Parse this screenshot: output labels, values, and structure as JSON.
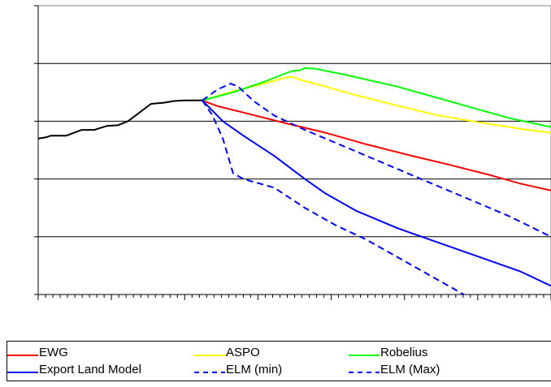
{
  "chart_data": {
    "type": "line",
    "title": "",
    "xlabel": "",
    "ylabel": "",
    "grid": true,
    "legend_position": "bottom",
    "x_range": [
      0,
      100
    ],
    "y_range": [
      0,
      5
    ],
    "series": [
      {
        "name": "",
        "color": "#000000",
        "style": "solid",
        "points": [
          [
            0,
            2.7
          ],
          [
            1.5,
            2.72
          ],
          [
            2.5,
            2.75
          ],
          [
            5.5,
            2.75
          ],
          [
            7,
            2.8
          ],
          [
            8.5,
            2.85
          ],
          [
            11,
            2.85
          ],
          [
            12,
            2.88
          ],
          [
            13.5,
            2.92
          ],
          [
            15.5,
            2.93
          ],
          [
            17.5,
            3.0
          ],
          [
            19,
            3.1
          ],
          [
            22,
            3.3
          ],
          [
            24.5,
            3.32
          ],
          [
            26.5,
            3.35
          ],
          [
            28.5,
            3.36
          ],
          [
            32,
            3.36
          ]
        ]
      },
      {
        "name": "EWG",
        "color": "#ff0000",
        "style": "solid",
        "points": [
          [
            32,
            3.36
          ],
          [
            35,
            3.26
          ],
          [
            40,
            3.15
          ],
          [
            48,
            2.97
          ],
          [
            56,
            2.8
          ],
          [
            64,
            2.6
          ],
          [
            72,
            2.42
          ],
          [
            80,
            2.25
          ],
          [
            88,
            2.07
          ],
          [
            94,
            1.92
          ],
          [
            100,
            1.8
          ]
        ]
      },
      {
        "name": "ASPO",
        "color": "#ffff00",
        "style": "solid",
        "points": [
          [
            32,
            3.36
          ],
          [
            38,
            3.52
          ],
          [
            44,
            3.65
          ],
          [
            48,
            3.75
          ],
          [
            49.5,
            3.77
          ],
          [
            51,
            3.72
          ],
          [
            56,
            3.6
          ],
          [
            62,
            3.45
          ],
          [
            70,
            3.27
          ],
          [
            78,
            3.1
          ],
          [
            86,
            2.98
          ],
          [
            94,
            2.87
          ],
          [
            100,
            2.8
          ]
        ]
      },
      {
        "name": "Robelius",
        "color": "#00ff00",
        "style": "solid",
        "points": [
          [
            32,
            3.36
          ],
          [
            38,
            3.5
          ],
          [
            44,
            3.68
          ],
          [
            48,
            3.82
          ],
          [
            49.5,
            3.87
          ],
          [
            51,
            3.88
          ],
          [
            52,
            3.92
          ],
          [
            54,
            3.91
          ],
          [
            60,
            3.8
          ],
          [
            70,
            3.6
          ],
          [
            78,
            3.4
          ],
          [
            86,
            3.2
          ],
          [
            92,
            3.05
          ],
          [
            100,
            2.9
          ]
        ]
      },
      {
        "name": "Export Land Model",
        "color": "#0000ff",
        "style": "solid",
        "points": [
          [
            32,
            3.36
          ],
          [
            36,
            3.0
          ],
          [
            40,
            2.75
          ],
          [
            46,
            2.4
          ],
          [
            52,
            2.0
          ],
          [
            56,
            1.75
          ],
          [
            62,
            1.45
          ],
          [
            70,
            1.15
          ],
          [
            78,
            0.9
          ],
          [
            86,
            0.65
          ],
          [
            94,
            0.4
          ],
          [
            100,
            0.15
          ]
        ]
      },
      {
        "name": "ELM (min)",
        "color": "#0000ff",
        "style": "dashed",
        "points": [
          [
            32,
            3.36
          ],
          [
            34,
            3.1
          ],
          [
            36,
            2.7
          ],
          [
            38,
            2.1
          ],
          [
            40,
            2.0
          ],
          [
            46,
            1.85
          ],
          [
            52,
            1.5
          ],
          [
            58,
            1.2
          ],
          [
            64,
            0.95
          ],
          [
            70,
            0.65
          ],
          [
            76,
            0.35
          ],
          [
            80,
            0.15
          ],
          [
            83,
            0.0
          ]
        ]
      },
      {
        "name": "ELM (Max)",
        "color": "#0000ff",
        "style": "dashed",
        "points": [
          [
            32,
            3.36
          ],
          [
            35,
            3.55
          ],
          [
            37.5,
            3.65
          ],
          [
            39,
            3.6
          ],
          [
            42,
            3.35
          ],
          [
            46,
            3.1
          ],
          [
            52,
            2.85
          ],
          [
            60,
            2.55
          ],
          [
            68,
            2.25
          ],
          [
            76,
            1.95
          ],
          [
            84,
            1.65
          ],
          [
            92,
            1.35
          ],
          [
            100,
            1.0
          ]
        ]
      }
    ]
  },
  "legend": {
    "items": [
      {
        "label": "EWG",
        "color": "#ff0000",
        "style": "solid"
      },
      {
        "label": "ASPO",
        "color": "#ffff00",
        "style": "solid"
      },
      {
        "label": "Robelius",
        "color": "#00ff00",
        "style": "solid"
      },
      {
        "label": "Export Land Model",
        "color": "#0000ff",
        "style": "solid"
      },
      {
        "label": "ELM (min)",
        "color": "#0000ff",
        "style": "dashed"
      },
      {
        "label": "ELM (Max)",
        "color": "#0000ff",
        "style": "dashed"
      }
    ]
  }
}
